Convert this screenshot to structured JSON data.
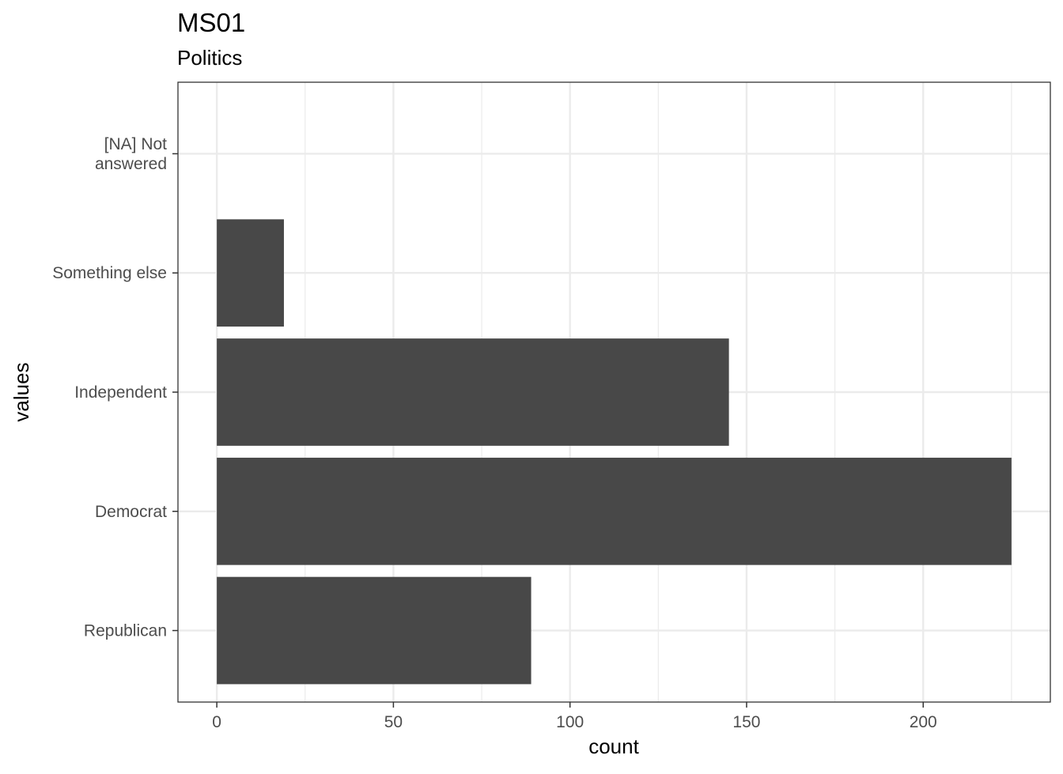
{
  "chart_data": {
    "type": "bar",
    "orientation": "horizontal",
    "title": "MS01",
    "subtitle": "Politics",
    "xlabel": "count",
    "ylabel": "values",
    "categories": [
      "Republican",
      "Democrat",
      "Independent",
      "Something else",
      "[NA] Not answered"
    ],
    "category_lines": [
      [
        "Republican"
      ],
      [
        "Democrat"
      ],
      [
        "Independent"
      ],
      [
        "Something else"
      ],
      [
        "[NA] Not",
        "answered"
      ]
    ],
    "values": [
      89,
      225,
      145,
      19,
      0
    ],
    "xlim": [
      -11,
      236
    ],
    "xticks": [
      0,
      50,
      100,
      150,
      200
    ],
    "grid": true,
    "bar_color": "#484848",
    "grid_color": "#ebebeb",
    "panel_border_color": "#333333"
  }
}
